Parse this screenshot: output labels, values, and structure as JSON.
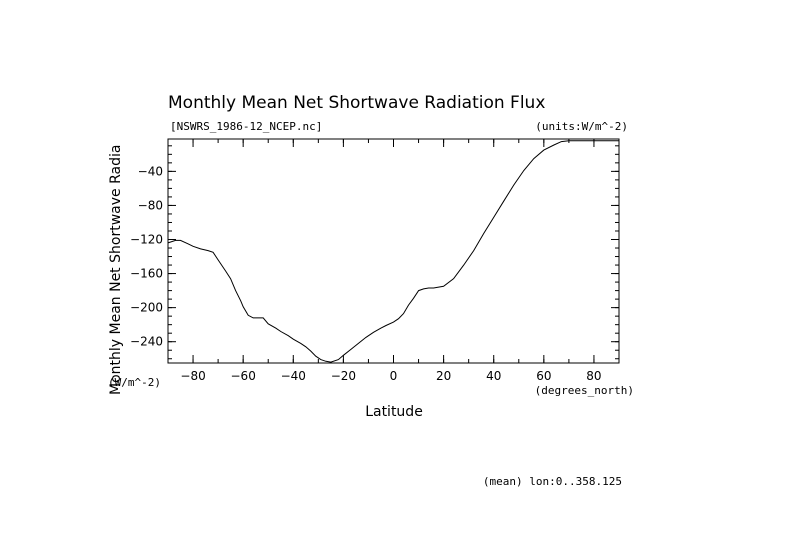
{
  "chart_data": {
    "type": "line",
    "title": "Monthly Mean Net Shortwave Radiation Flux",
    "file_label": "[NSWRS_1986-12_NCEP.nc]",
    "units_label": "(units:W/m^-2)",
    "xlabel": "Latitude",
    "xunits": "(degrees_north)",
    "ylabel": "Monthly Mean Net Shortwave Radia",
    "yunits": "(W/m^-2)",
    "footnote": "(mean) lon:0..358.125",
    "xlim": [
      -90,
      90
    ],
    "ylim": [
      -265,
      -2
    ],
    "xticks": [
      -80,
      -60,
      -40,
      -20,
      0,
      20,
      40,
      60,
      80
    ],
    "yticks": [
      -40,
      -80,
      -120,
      -160,
      -200,
      -240
    ],
    "grid": false,
    "series": [
      {
        "x": [
          -90,
          -87,
          -85,
          -82,
          -80,
          -77,
          -74,
          -72,
          -70,
          -67,
          -65,
          -63,
          -61,
          -60,
          -58,
          -56,
          -54,
          -52,
          -50,
          -47,
          -45,
          -42,
          -40,
          -37,
          -35,
          -33,
          -31,
          -29,
          -27,
          -25,
          -22,
          -20,
          -17,
          -14,
          -11,
          -8,
          -5,
          -3,
          0,
          2,
          4,
          6,
          8,
          10,
          12,
          14,
          16,
          20,
          24,
          28,
          32,
          36,
          40,
          44,
          48,
          52,
          56,
          60,
          64,
          67,
          70,
          75,
          80,
          85,
          90
        ],
        "y": [
          -124,
          -121,
          -121,
          -125,
          -128,
          -131,
          -133,
          -135,
          -144,
          -157,
          -166,
          -180,
          -192,
          -199,
          -209,
          -212,
          -212,
          -212,
          -219,
          -224,
          -228,
          -233,
          -237,
          -242,
          -246,
          -251,
          -257,
          -261,
          -263,
          -264,
          -261,
          -256,
          -249,
          -242,
          -235,
          -229,
          -224,
          -221,
          -217,
          -213,
          -207,
          -197,
          -189,
          -180,
          -178,
          -177,
          -177,
          -175,
          -166,
          -150,
          -133,
          -113,
          -94,
          -75,
          -56,
          -39,
          -25,
          -15,
          -9,
          -5,
          -4,
          -4,
          -4,
          -4,
          -4
        ]
      }
    ]
  }
}
